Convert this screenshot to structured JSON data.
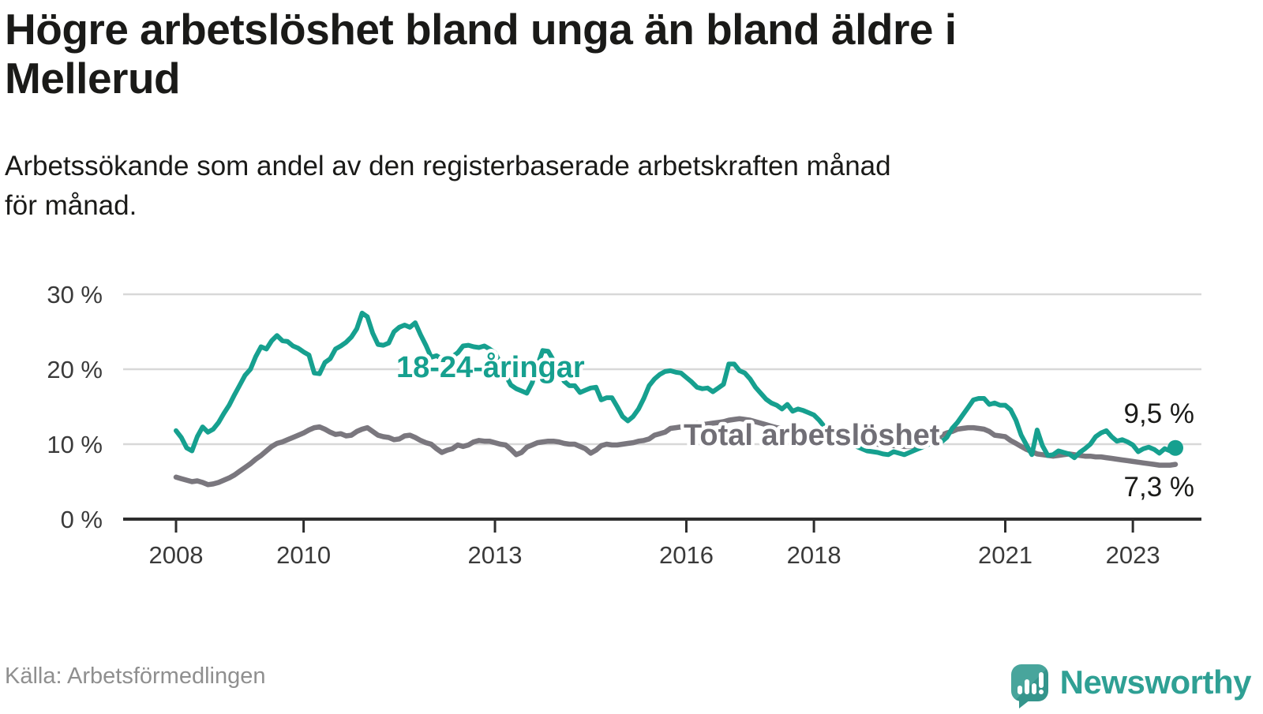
{
  "header": {
    "title": "Högre arbetslöshet bland unga än bland äldre i Mellerud",
    "title_lines": [
      "Högre arbetslöshet bland unga än bland äldre i",
      "Mellerud"
    ],
    "subtitle": "Arbetssökande som andel av den registerbaserade arbetskraften månad för månad.",
    "subtitle_lines": [
      "Arbetssökande som andel av den registerbaserade arbetskraften månad",
      "för månad."
    ]
  },
  "footer": {
    "source": "Källa: Arbetsförmedlingen",
    "logo_text": "Newsworthy",
    "logo_icon": "speech-bubble-bar-chart-exclamation"
  },
  "colors": {
    "young_line": "#16a08f",
    "total_line": "#7a777e",
    "total_label": "#716f76",
    "grid": "#d8d8d8",
    "axis": "#2d2d2d",
    "tick_text": "#3a3a3a",
    "value_text": "#1a1a18",
    "source_text": "#8f8f8f",
    "logo_teal": "#48a59c"
  },
  "chart_data": {
    "type": "line",
    "unit": "%",
    "x_start": "2008-01",
    "x_end": "2023-09",
    "months_per_point": 1,
    "grid": "horizontal",
    "ylim": [
      0,
      30
    ],
    "y_ticks": [
      {
        "label": "30 %",
        "value": 30
      },
      {
        "label": "20 %",
        "value": 20
      },
      {
        "label": "10 %",
        "value": 10
      },
      {
        "label": "0 %",
        "value": 0
      }
    ],
    "x_ticks": [
      {
        "label": "2008",
        "month_index": 0
      },
      {
        "label": "2010",
        "month_index": 24
      },
      {
        "label": "2013",
        "month_index": 60
      },
      {
        "label": "2016",
        "month_index": 96
      },
      {
        "label": "2018",
        "month_index": 120
      },
      {
        "label": "2021",
        "month_index": 156
      },
      {
        "label": "2023",
        "month_index": 180
      }
    ],
    "series": [
      {
        "id": "total",
        "label": "Total arbetslöshet",
        "end_label": "7,3 %",
        "last_value": 7.3,
        "values": [
          5.6,
          5.4,
          5.2,
          5.0,
          5.1,
          4.9,
          4.6,
          4.7,
          4.9,
          5.2,
          5.5,
          5.9,
          6.4,
          6.9,
          7.4,
          8.0,
          8.5,
          9.1,
          9.7,
          10.1,
          10.3,
          10.6,
          10.9,
          11.2,
          11.5,
          11.9,
          12.2,
          12.3,
          12.0,
          11.6,
          11.3,
          11.4,
          11.1,
          11.2,
          11.7,
          12.0,
          12.2,
          11.7,
          11.2,
          11.0,
          10.9,
          10.6,
          10.7,
          11.1,
          11.2,
          10.9,
          10.5,
          10.2,
          10.0,
          9.4,
          8.9,
          9.2,
          9.4,
          9.9,
          9.7,
          9.9,
          10.3,
          10.5,
          10.4,
          10.4,
          10.2,
          10.0,
          9.9,
          9.3,
          8.6,
          8.9,
          9.6,
          9.9,
          10.2,
          10.3,
          10.4,
          10.4,
          10.3,
          10.1,
          10.0,
          10.0,
          9.7,
          9.4,
          8.8,
          9.2,
          9.8,
          10.0,
          9.9,
          9.9,
          10.0,
          10.1,
          10.2,
          10.4,
          10.5,
          10.7,
          11.2,
          11.4,
          11.6,
          12.1,
          12.2,
          12.3,
          12.5,
          12.6,
          12.8,
          12.6,
          12.7,
          12.8,
          12.9,
          13.0,
          13.2,
          13.3,
          13.4,
          13.3,
          13.2,
          13.0,
          12.8,
          12.6,
          12.4,
          12.2,
          12.1,
          12.0,
          11.9,
          11.8,
          11.7,
          11.6,
          11.5,
          11.4,
          11.2,
          11.1,
          10.9,
          10.8,
          10.6,
          10.5,
          10.4,
          10.3,
          10.2,
          10.1,
          10.0,
          9.9,
          9.9,
          9.8,
          9.8,
          9.7,
          9.7,
          9.7,
          9.8,
          9.9,
          10.1,
          10.5,
          11.2,
          11.5,
          11.7,
          12.0,
          12.1,
          12.2,
          12.2,
          12.1,
          12.0,
          11.7,
          11.2,
          11.1,
          11.0,
          10.5,
          10.1,
          9.7,
          9.3,
          9.0,
          8.7,
          8.6,
          8.5,
          8.4,
          8.5,
          8.6,
          8.7,
          8.6,
          8.5,
          8.4,
          8.4,
          8.3,
          8.3,
          8.2,
          8.1,
          8.0,
          7.9,
          7.8,
          7.7,
          7.6,
          7.5,
          7.4,
          7.3,
          7.2,
          7.2,
          7.2,
          7.3
        ]
      },
      {
        "id": "young",
        "label": "18-24-åringar",
        "end_label": "9,5 %",
        "last_value": 9.5,
        "values": [
          11.8,
          10.9,
          9.5,
          9.1,
          11.0,
          12.3,
          11.6,
          12.0,
          12.9,
          14.1,
          15.2,
          16.6,
          17.9,
          19.2,
          20.0,
          21.7,
          23.0,
          22.7,
          23.8,
          24.5,
          23.8,
          23.7,
          23.1,
          22.8,
          22.3,
          21.9,
          19.5,
          19.4,
          20.9,
          21.4,
          22.7,
          23.1,
          23.6,
          24.3,
          25.4,
          27.5,
          27.0,
          24.8,
          23.3,
          23.2,
          23.5,
          25.0,
          25.6,
          25.9,
          25.6,
          26.2,
          24.6,
          23.2,
          21.6,
          21.8,
          21.4,
          21.4,
          21.7,
          22.2,
          23.1,
          23.2,
          23.0,
          22.9,
          23.1,
          22.7,
          22.2,
          20.8,
          19.2,
          17.9,
          17.4,
          17.1,
          16.8,
          18.2,
          20.5,
          22.5,
          22.4,
          21.2,
          19.8,
          18.4,
          17.8,
          17.8,
          16.9,
          17.2,
          17.5,
          17.6,
          15.9,
          16.2,
          16.2,
          15.0,
          13.7,
          13.1,
          13.7,
          14.7,
          16.1,
          17.8,
          18.7,
          19.3,
          19.7,
          19.8,
          19.6,
          19.5,
          18.9,
          18.3,
          17.6,
          17.4,
          17.5,
          17.0,
          17.5,
          18.0,
          20.7,
          20.7,
          19.8,
          19.5,
          18.7,
          17.6,
          16.8,
          16.0,
          15.5,
          15.2,
          14.7,
          15.3,
          14.4,
          14.7,
          14.5,
          14.2,
          13.9,
          13.2,
          12.3,
          11.2,
          10.9,
          10.5,
          10.2,
          10.0,
          9.7,
          9.4,
          9.1,
          9.0,
          8.9,
          8.7,
          8.6,
          9.0,
          8.8,
          8.6,
          8.9,
          9.2,
          9.5,
          9.8,
          10.1,
          10.2,
          10.3,
          10.9,
          12.1,
          12.9,
          13.9,
          14.9,
          15.9,
          16.1,
          16.1,
          15.3,
          15.5,
          15.2,
          15.2,
          14.6,
          13.2,
          11.2,
          9.9,
          8.6,
          11.9,
          9.8,
          8.5,
          8.6,
          9.1,
          8.9,
          8.7,
          8.2,
          8.9,
          9.4,
          10.0,
          11.0,
          11.5,
          11.8,
          11.0,
          10.4,
          10.6,
          10.3,
          9.9,
          9.0,
          9.4,
          9.6,
          9.3,
          8.8,
          9.4,
          9.1,
          9.5
        ]
      }
    ]
  }
}
